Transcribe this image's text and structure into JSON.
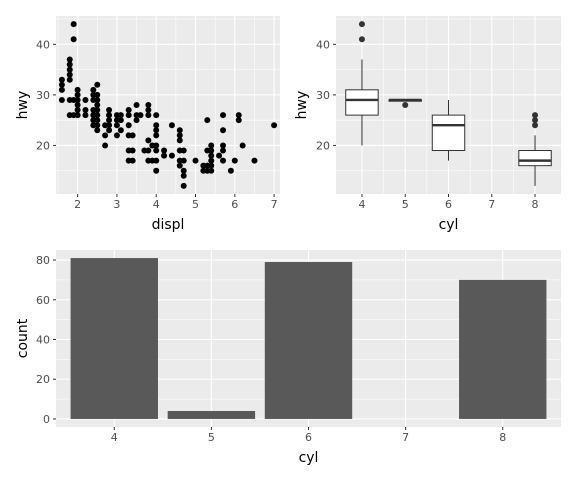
{
  "chart_data": [
    {
      "type": "scatter",
      "xlabel": "displ",
      "ylabel": "hwy",
      "xlim": [
        1.45,
        7.15
      ],
      "ylim": [
        10.4,
        45.6
      ],
      "xticks": [
        2,
        3,
        4,
        5,
        6,
        7
      ],
      "yticks": [
        20,
        30,
        40
      ],
      "grid": true,
      "points": [
        [
          1.6,
          29
        ],
        [
          1.6,
          31
        ],
        [
          1.6,
          32
        ],
        [
          1.6,
          33
        ],
        [
          1.8,
          26
        ],
        [
          1.8,
          29
        ],
        [
          1.8,
          33
        ],
        [
          1.8,
          34
        ],
        [
          1.8,
          35
        ],
        [
          1.8,
          36
        ],
        [
          1.8,
          37
        ],
        [
          1.9,
          44
        ],
        [
          1.9,
          41
        ],
        [
          1.9,
          29
        ],
        [
          1.9,
          26
        ],
        [
          2.0,
          26
        ],
        [
          2.0,
          28
        ],
        [
          2.0,
          29
        ],
        [
          2.0,
          30
        ],
        [
          2.0,
          31
        ],
        [
          2.0,
          27
        ],
        [
          2.2,
          26
        ],
        [
          2.2,
          27
        ],
        [
          2.2,
          29
        ],
        [
          2.4,
          24
        ],
        [
          2.4,
          25
        ],
        [
          2.4,
          26
        ],
        [
          2.4,
          27
        ],
        [
          2.4,
          29
        ],
        [
          2.4,
          30
        ],
        [
          2.4,
          31
        ],
        [
          2.5,
          23
        ],
        [
          2.5,
          24
        ],
        [
          2.5,
          25
        ],
        [
          2.5,
          26
        ],
        [
          2.5,
          27
        ],
        [
          2.5,
          28
        ],
        [
          2.5,
          29
        ],
        [
          2.5,
          30
        ],
        [
          2.5,
          32
        ],
        [
          2.7,
          20
        ],
        [
          2.7,
          22
        ],
        [
          2.7,
          24
        ],
        [
          2.8,
          23
        ],
        [
          2.8,
          24
        ],
        [
          2.8,
          25
        ],
        [
          2.8,
          26
        ],
        [
          2.8,
          27
        ],
        [
          3.0,
          22
        ],
        [
          3.0,
          24
        ],
        [
          3.0,
          25
        ],
        [
          3.0,
          26
        ],
        [
          3.1,
          23
        ],
        [
          3.1,
          25
        ],
        [
          3.1,
          26
        ],
        [
          3.3,
          17
        ],
        [
          3.3,
          19
        ],
        [
          3.3,
          22
        ],
        [
          3.3,
          24
        ],
        [
          3.3,
          26
        ],
        [
          3.3,
          27
        ],
        [
          3.4,
          17
        ],
        [
          3.4,
          19
        ],
        [
          3.4,
          22
        ],
        [
          3.5,
          25
        ],
        [
          3.5,
          26
        ],
        [
          3.5,
          28
        ],
        [
          3.6,
          26
        ],
        [
          3.7,
          19
        ],
        [
          3.8,
          17
        ],
        [
          3.8,
          19
        ],
        [
          3.8,
          21
        ],
        [
          3.8,
          26
        ],
        [
          3.8,
          27
        ],
        [
          3.8,
          28
        ],
        [
          3.9,
          17
        ],
        [
          3.9,
          20
        ],
        [
          4.0,
          15
        ],
        [
          4.0,
          17
        ],
        [
          4.0,
          19
        ],
        [
          4.0,
          20
        ],
        [
          4.0,
          22
        ],
        [
          4.0,
          23
        ],
        [
          4.0,
          24
        ],
        [
          4.0,
          26
        ],
        [
          4.2,
          18
        ],
        [
          4.2,
          19
        ],
        [
          4.4,
          18
        ],
        [
          4.4,
          24
        ],
        [
          4.6,
          16
        ],
        [
          4.6,
          17
        ],
        [
          4.6,
          19
        ],
        [
          4.6,
          21
        ],
        [
          4.6,
          22
        ],
        [
          4.6,
          23
        ],
        [
          4.7,
          12
        ],
        [
          4.7,
          14
        ],
        [
          4.7,
          15
        ],
        [
          4.7,
          17
        ],
        [
          4.7,
          19
        ],
        [
          5.0,
          17
        ],
        [
          5.2,
          15
        ],
        [
          5.2,
          16
        ],
        [
          5.3,
          15
        ],
        [
          5.3,
          16
        ],
        [
          5.3,
          19
        ],
        [
          5.3,
          25
        ],
        [
          5.4,
          15
        ],
        [
          5.4,
          16
        ],
        [
          5.4,
          17
        ],
        [
          5.4,
          18
        ],
        [
          5.4,
          19
        ],
        [
          5.4,
          20
        ],
        [
          5.6,
          18
        ],
        [
          5.7,
          17
        ],
        [
          5.7,
          19
        ],
        [
          5.7,
          20
        ],
        [
          5.7,
          23
        ],
        [
          5.7,
          26
        ],
        [
          5.9,
          15
        ],
        [
          6.0,
          17
        ],
        [
          6.1,
          25
        ],
        [
          6.1,
          26
        ],
        [
          6.2,
          20
        ],
        [
          6.5,
          17
        ],
        [
          7.0,
          24
        ]
      ]
    },
    {
      "type": "box",
      "xlabel": "cyl",
      "ylabel": "hwy",
      "ylim": [
        10.4,
        45.6
      ],
      "xticks": [
        4,
        5,
        6,
        7,
        8
      ],
      "yticks": [
        20,
        30,
        40
      ],
      "grid": true,
      "boxes": [
        {
          "x": 4,
          "lower": 20,
          "q1": 26,
          "median": 29,
          "q3": 31,
          "upper": 37,
          "outliers": [
            41,
            44
          ]
        },
        {
          "x": 5,
          "lower": 29,
          "q1": 28.75,
          "median": 29,
          "q3": 29,
          "upper": 29,
          "outliers": [
            28
          ]
        },
        {
          "x": 6,
          "lower": 17,
          "q1": 19,
          "median": 24,
          "q3": 26,
          "upper": 29,
          "outliers": []
        },
        {
          "x": 8,
          "lower": 12,
          "q1": 16,
          "median": 17,
          "q3": 19,
          "upper": 22,
          "outliers": [
            24,
            25,
            26
          ]
        }
      ]
    },
    {
      "type": "bar",
      "xlabel": "cyl",
      "ylabel": "count",
      "categories": [
        "4",
        "5",
        "6",
        "7",
        "8"
      ],
      "values": [
        81,
        4,
        79,
        0,
        70
      ],
      "ylim": [
        -4.05,
        85.05
      ],
      "yticks": [
        0,
        20,
        40,
        60,
        80
      ],
      "grid": true
    }
  ]
}
